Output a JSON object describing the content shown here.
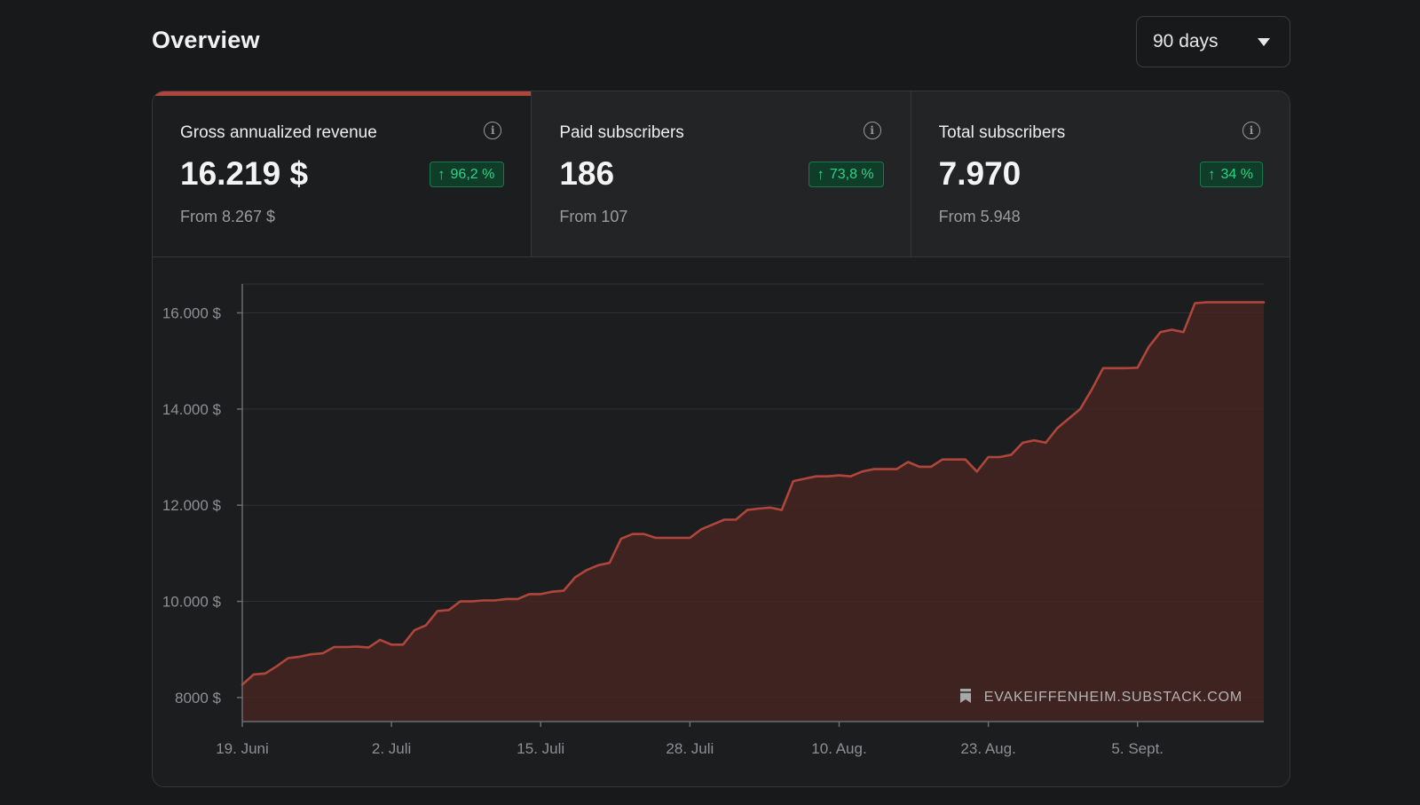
{
  "header": {
    "title": "Overview",
    "range_value": "90 days"
  },
  "metrics": [
    {
      "label": "Gross annualized revenue",
      "value": "16.219 $",
      "change": "96,2 %",
      "from": "From 8.267 $",
      "active": true
    },
    {
      "label": "Paid subscribers",
      "value": "186",
      "change": "73,8 %",
      "from": "From 107",
      "active": false
    },
    {
      "label": "Total subscribers",
      "value": "7.970",
      "change": "34 %",
      "from": "From 5.948",
      "active": false
    }
  ],
  "watermark": "EVAKEIFFENHEIM.SUBSTACK.COM",
  "colors": {
    "line": "#b0463b",
    "fill": "#4a2523",
    "badge_text": "#2bd586",
    "badge_bg": "#0f3d2a"
  },
  "chart_data": {
    "type": "area",
    "ylim": [
      7500,
      16600
    ],
    "y_ticks": [
      8000,
      10000,
      12000,
      14000,
      16000
    ],
    "y_tick_labels": [
      "8000 $",
      "10.000 $",
      "12.000 $",
      "14.000 $",
      "16.000 $"
    ],
    "x_ticks": [
      0,
      13,
      26,
      39,
      52,
      65,
      78
    ],
    "x_tick_labels": [
      "19. Juni",
      "2. Juli",
      "15. Juli",
      "28. Juli",
      "10. Aug.",
      "23. Aug.",
      "5. Sept."
    ],
    "xlim": [
      0,
      89
    ],
    "grid": true,
    "series": [
      {
        "x": [
          0,
          1,
          2,
          3,
          4,
          5,
          6,
          7,
          8,
          9,
          10,
          11,
          12,
          13,
          14,
          15,
          16,
          17,
          18,
          19,
          20,
          21,
          22,
          23,
          24,
          25,
          26,
          27,
          28,
          29,
          30,
          31,
          32,
          33,
          34,
          35,
          36,
          37,
          38,
          39,
          40,
          41,
          42,
          43,
          44,
          45,
          46,
          47,
          48,
          49,
          50,
          51,
          52,
          53,
          54,
          55,
          56,
          57,
          58,
          59,
          60,
          61,
          62,
          63,
          64,
          65,
          66,
          67,
          68,
          69,
          70,
          71,
          72,
          73,
          74,
          75,
          76,
          77,
          78,
          79,
          80,
          81,
          82,
          83,
          84,
          85,
          86,
          87,
          88,
          89
        ],
        "y": [
          8267,
          8480,
          8500,
          8650,
          8820,
          8850,
          8900,
          8920,
          9050,
          9050,
          9060,
          9040,
          9200,
          9100,
          9100,
          9400,
          9500,
          9800,
          9820,
          10000,
          10000,
          10020,
          10020,
          10050,
          10050,
          10150,
          10150,
          10200,
          10220,
          10500,
          10650,
          10750,
          10800,
          11300,
          11400,
          11400,
          11320,
          11320,
          11320,
          11320,
          11500,
          11600,
          11700,
          11700,
          11900,
          11930,
          11950,
          11900,
          12500,
          12550,
          12600,
          12600,
          12620,
          12600,
          12700,
          12750,
          12750,
          12750,
          12900,
          12800,
          12800,
          12950,
          12950,
          12950,
          12700,
          13000,
          13000,
          13050,
          13300,
          13350,
          13300,
          13600,
          13800,
          14000,
          14400,
          14850,
          14850,
          14850,
          14860,
          15300,
          15600,
          15650,
          15600,
          16200,
          16219,
          16219,
          16219,
          16219,
          16219,
          16219
        ]
      }
    ]
  }
}
